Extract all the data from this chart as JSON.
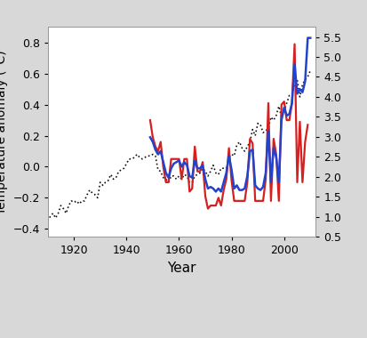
{
  "title": "",
  "xlabel": "Year",
  "ylabel_left": "Temperature anomaly (°C)",
  "xlim": [
    1910,
    2012
  ],
  "ylim_left": [
    -0.45,
    0.9
  ],
  "ylim_right": [
    0.5,
    5.75
  ],
  "yticks_left": [
    -0.4,
    -0.2,
    0.0,
    0.2,
    0.4,
    0.6,
    0.8
  ],
  "yticks_right": [
    0.5,
    1.0,
    1.5,
    2.0,
    2.5,
    3.0,
    3.5,
    4.0,
    4.5,
    5.0,
    5.5
  ],
  "xticks": [
    1920,
    1940,
    1960,
    1980,
    2000
  ],
  "bg_color": "#ffffff",
  "dotted_color": "#111111",
  "red_color": "#d42020",
  "blue_color": "#2244cc",
  "dotted_years": [
    1910,
    1911,
    1912,
    1913,
    1914,
    1915,
    1916,
    1917,
    1918,
    1919,
    1920,
    1921,
    1922,
    1923,
    1924,
    1925,
    1926,
    1927,
    1928,
    1929,
    1930,
    1931,
    1932,
    1933,
    1934,
    1935,
    1936,
    1937,
    1938,
    1939,
    1940,
    1941,
    1942,
    1943,
    1944,
    1945,
    1946,
    1947,
    1948,
    1949,
    1950,
    1951,
    1952,
    1953,
    1954,
    1955,
    1956,
    1957,
    1958,
    1959,
    1960,
    1961,
    1962,
    1963,
    1964,
    1965,
    1966,
    1967,
    1968,
    1969,
    1970,
    1971,
    1972,
    1973,
    1974,
    1975,
    1976,
    1977,
    1978,
    1979,
    1980,
    1981,
    1982,
    1983,
    1984,
    1985,
    1986,
    1987,
    1988,
    1989,
    1990,
    1991,
    1992,
    1993,
    1994,
    1995,
    1996,
    1997,
    1998,
    1999,
    2000,
    2001,
    2002,
    2003,
    2004,
    2005,
    2006,
    2007,
    2008,
    2009,
    2010
  ],
  "dotted_vals": [
    -0.35,
    -0.32,
    -0.3,
    -0.33,
    -0.3,
    -0.25,
    -0.27,
    -0.3,
    -0.25,
    -0.22,
    -0.23,
    -0.22,
    -0.24,
    -0.22,
    -0.22,
    -0.18,
    -0.15,
    -0.17,
    -0.18,
    -0.2,
    -0.1,
    -0.12,
    -0.1,
    -0.09,
    -0.05,
    -0.08,
    -0.07,
    -0.03,
    -0.02,
    -0.01,
    0.02,
    0.05,
    0.05,
    0.06,
    0.08,
    0.06,
    0.05,
    0.06,
    0.07,
    0.07,
    0.08,
    0.07,
    -0.02,
    -0.03,
    -0.07,
    -0.08,
    -0.1,
    -0.06,
    -0.06,
    -0.08,
    -0.06,
    -0.08,
    -0.05,
    -0.06,
    -0.1,
    -0.1,
    -0.06,
    -0.05,
    -0.04,
    -0.01,
    -0.03,
    -0.06,
    -0.03,
    0.01,
    -0.04,
    -0.05,
    -0.01,
    -0.01,
    -0.01,
    0.06,
    0.08,
    0.07,
    0.14,
    0.16,
    0.12,
    0.1,
    0.13,
    0.16,
    0.24,
    0.2,
    0.28,
    0.27,
    0.22,
    0.23,
    0.25,
    0.32,
    0.3,
    0.33,
    0.39,
    0.32,
    0.36,
    0.41,
    0.46,
    0.47,
    0.53,
    0.56,
    0.45,
    0.53,
    0.56,
    0.58,
    0.62
  ],
  "red_years": [
    1949,
    1950,
    1951,
    1952,
    1953,
    1954,
    1955,
    1956,
    1957,
    1958,
    1959,
    1960,
    1961,
    1962,
    1963,
    1964,
    1965,
    1966,
    1967,
    1968,
    1969,
    1970,
    1971,
    1972,
    1973,
    1974,
    1975,
    1976,
    1977,
    1978,
    1979,
    1980,
    1981,
    1982,
    1983,
    1984,
    1985,
    1986,
    1987,
    1988,
    1989,
    1990,
    1991,
    1992,
    1993,
    1994,
    1995,
    1996,
    1997,
    1998,
    1999,
    2000,
    2001,
    2002,
    2003,
    2004,
    2005,
    2006,
    2007,
    2008,
    2009
  ],
  "red_vals": [
    0.3,
    0.19,
    0.13,
    0.1,
    0.16,
    0.0,
    -0.1,
    -0.1,
    0.05,
    0.05,
    0.05,
    0.05,
    -0.08,
    0.05,
    0.05,
    -0.16,
    -0.14,
    0.13,
    -0.03,
    -0.03,
    0.03,
    -0.19,
    -0.27,
    -0.25,
    -0.25,
    -0.25,
    -0.2,
    -0.25,
    -0.15,
    -0.08,
    0.12,
    -0.09,
    -0.22,
    -0.22,
    -0.22,
    -0.22,
    -0.22,
    -0.1,
    0.18,
    0.15,
    -0.22,
    -0.22,
    -0.22,
    -0.22,
    -0.08,
    0.41,
    -0.22,
    0.18,
    0.08,
    -0.22,
    0.4,
    0.42,
    0.3,
    0.3,
    0.41,
    0.79,
    -0.1,
    0.29,
    -0.1,
    0.16,
    0.27
  ],
  "blue_years": [
    1949,
    1950,
    1951,
    1952,
    1953,
    1954,
    1955,
    1956,
    1957,
    1958,
    1959,
    1960,
    1961,
    1962,
    1963,
    1964,
    1965,
    1966,
    1967,
    1968,
    1969,
    1970,
    1971,
    1972,
    1973,
    1974,
    1975,
    1976,
    1977,
    1978,
    1979,
    1980,
    1981,
    1982,
    1983,
    1984,
    1985,
    1986,
    1987,
    1988,
    1989,
    1990,
    1991,
    1992,
    1993,
    1994,
    1995,
    1996,
    1997,
    1998,
    1999,
    2000,
    2001,
    2002,
    2003,
    2004,
    2005,
    2006,
    2007,
    2008,
    2009,
    2010
  ],
  "blue_vals": [
    0.19,
    0.16,
    0.11,
    0.08,
    0.1,
    0.03,
    -0.04,
    -0.07,
    -0.01,
    0.02,
    0.03,
    0.04,
    0.0,
    0.03,
    0.01,
    -0.06,
    -0.07,
    0.04,
    -0.01,
    -0.01,
    0.01,
    -0.08,
    -0.14,
    -0.13,
    -0.14,
    -0.16,
    -0.14,
    -0.16,
    -0.1,
    -0.04,
    0.07,
    -0.02,
    -0.14,
    -0.12,
    -0.15,
    -0.15,
    -0.14,
    -0.06,
    0.1,
    0.11,
    -0.12,
    -0.14,
    -0.15,
    -0.13,
    -0.04,
    0.23,
    -0.1,
    0.12,
    0.06,
    -0.1,
    0.3,
    0.38,
    0.33,
    0.34,
    0.41,
    0.66,
    0.47,
    0.5,
    0.48,
    0.55,
    0.83,
    0.83
  ]
}
